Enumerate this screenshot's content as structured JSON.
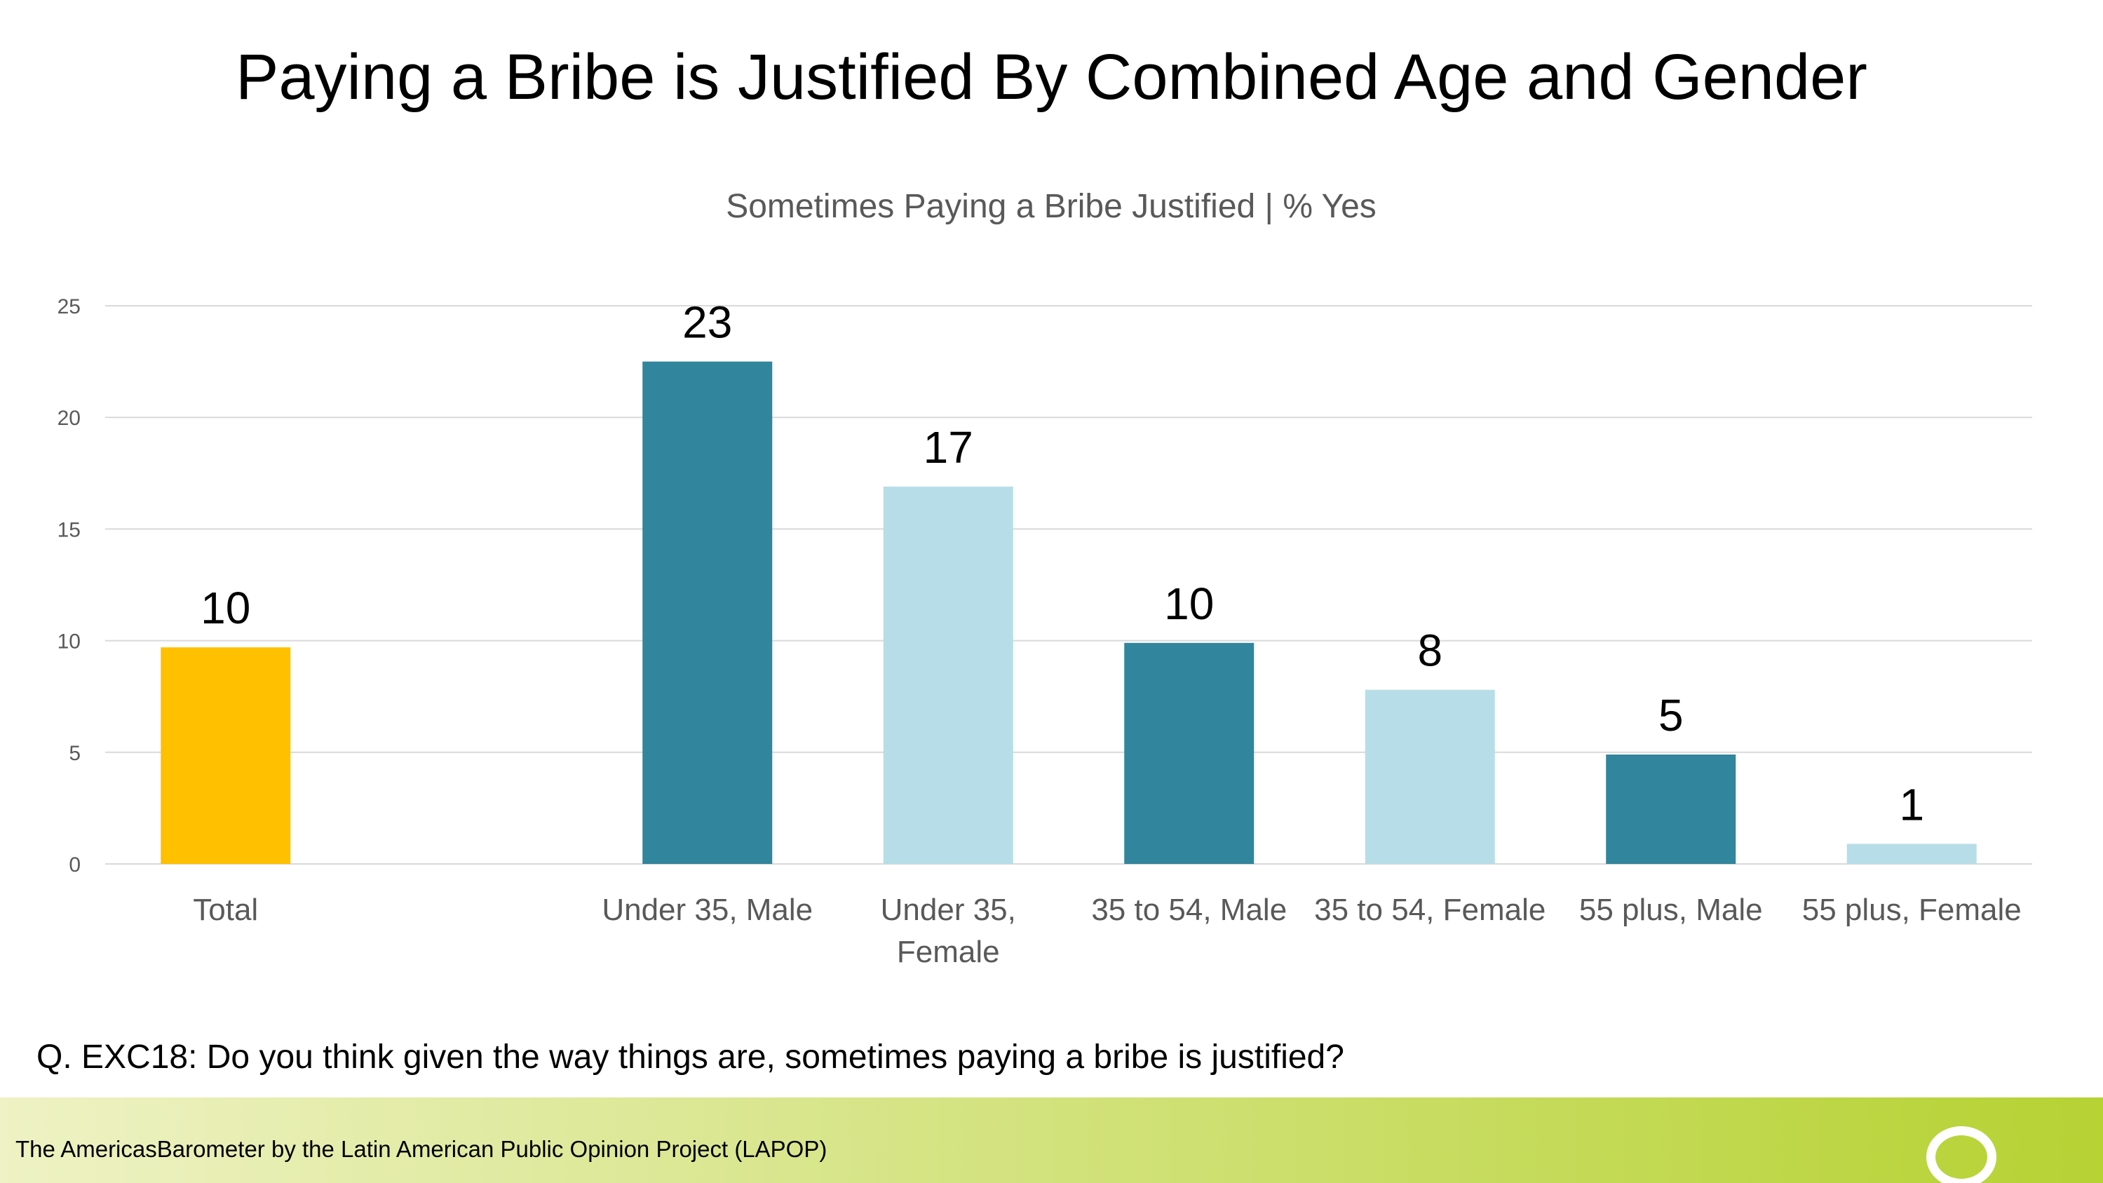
{
  "title": "Paying a Bribe is Justified By Combined Age and Gender",
  "question": "Q. EXC18: Do you think given the way things are, sometimes paying a bribe is justified?",
  "footer": {
    "text": "The AmericasBarometer by the Latin American Public Opinion Project (LAPOP)",
    "gradient_start": "#eef2c4",
    "gradient_end": "#b6d233",
    "logo_icon": "lapop-ring-logo-icon"
  },
  "chart_data": {
    "type": "bar",
    "subtitle": "Sometimes Paying a Bribe Justified | % Yes",
    "categories": [
      [
        "Total"
      ],
      [
        ""
      ],
      [
        "Under 35, Male"
      ],
      [
        "Under 35,",
        "Female"
      ],
      [
        "35 to 54, Male"
      ],
      [
        "35 to 54, Female"
      ],
      [
        "55 plus, Male"
      ],
      [
        "55 plus, Female"
      ]
    ],
    "values": [
      9.7,
      null,
      22.5,
      16.9,
      9.9,
      7.8,
      4.9,
      0.9
    ],
    "data_labels": [
      "10",
      "",
      "23",
      "17",
      "10",
      "8",
      "5",
      "1"
    ],
    "bar_colors": [
      "#ffc000",
      null,
      "#31859c",
      "#b7dee8",
      "#31859c",
      "#b7dee8",
      "#31859c",
      "#b7dee8"
    ],
    "ylim": [
      0,
      25
    ],
    "yticks": [
      0,
      5,
      10,
      15,
      20,
      25
    ],
    "grid": true,
    "xlabel": "",
    "ylabel": ""
  }
}
